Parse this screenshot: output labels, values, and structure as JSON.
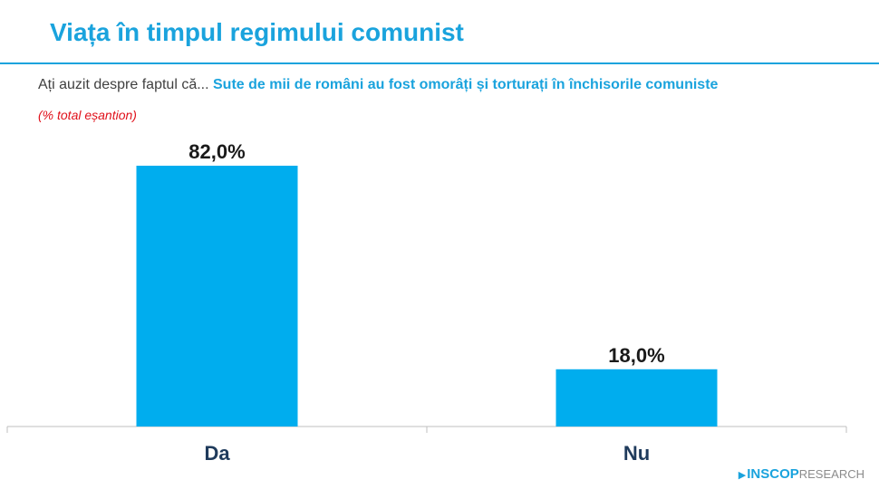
{
  "header": {
    "title": "Viața în timpul regimului comunist"
  },
  "question": {
    "lead": "Ați auzit despre faptul că...",
    "highlight": "Sute de mii de români au fost omorâți și torturați în închisorile comuniste",
    "note": "(% total eșantion)"
  },
  "logo": {
    "brand": "INSCOP",
    "suffix": "RESEARCH"
  },
  "colors": {
    "accent": "#1aa3dd",
    "bar": "#00adee",
    "note": "#e0101a"
  },
  "chart_data": {
    "type": "bar",
    "title": "",
    "xlabel": "",
    "ylabel": "",
    "categories": [
      "Da",
      "Nu"
    ],
    "values": [
      82.0,
      18.0
    ],
    "data_labels": [
      "82,0%",
      "18,0%"
    ],
    "ylim": [
      0,
      82
    ],
    "grid": false,
    "legend": "none"
  }
}
